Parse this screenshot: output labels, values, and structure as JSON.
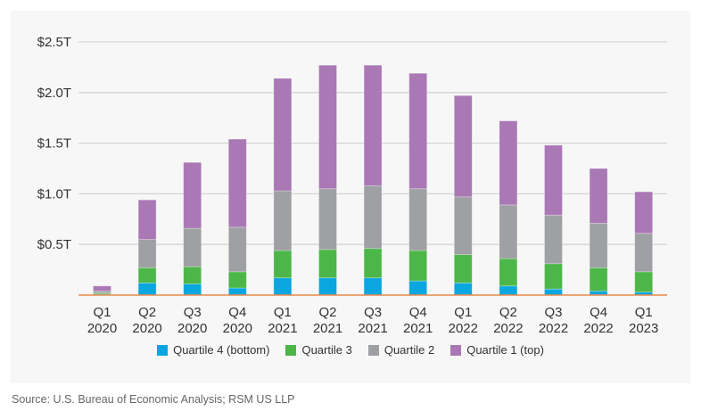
{
  "chart_data": {
    "type": "bar",
    "stacked": true,
    "title": "",
    "xlabel": "",
    "ylabel": "",
    "ylim": [
      0,
      2.5
    ],
    "yticks": [
      {
        "value": 0.5,
        "label": "$0.5T"
      },
      {
        "value": 1.0,
        "label": "$1.0T"
      },
      {
        "value": 1.5,
        "label": "$1.5T"
      },
      {
        "value": 2.0,
        "label": "$2.0T"
      },
      {
        "value": 2.5,
        "label": "$2.5T"
      }
    ],
    "grid": true,
    "legend_position": "bottom",
    "categories": [
      [
        "Q1",
        "2020"
      ],
      [
        "Q2",
        "2020"
      ],
      [
        "Q3",
        "2020"
      ],
      [
        "Q4",
        "2020"
      ],
      [
        "Q1",
        "2021"
      ],
      [
        "Q2",
        "2021"
      ],
      [
        "Q3",
        "2021"
      ],
      [
        "Q4",
        "2021"
      ],
      [
        "Q1",
        "2022"
      ],
      [
        "Q2",
        "2022"
      ],
      [
        "Q3",
        "2022"
      ],
      [
        "Q4",
        "2022"
      ],
      [
        "Q1",
        "2023"
      ]
    ],
    "series": [
      {
        "name": "Quartile 4 (bottom)",
        "color": "#0aa6e0",
        "values": [
          0.01,
          0.12,
          0.11,
          0.07,
          0.17,
          0.17,
          0.17,
          0.14,
          0.12,
          0.09,
          0.06,
          0.04,
          0.03
        ]
      },
      {
        "name": "Quartile 3",
        "color": "#4cb748",
        "values": [
          0.01,
          0.15,
          0.17,
          0.16,
          0.27,
          0.28,
          0.29,
          0.3,
          0.28,
          0.27,
          0.25,
          0.23,
          0.2
        ]
      },
      {
        "name": "Quartile 2",
        "color": "#9fa0a3",
        "values": [
          0.02,
          0.28,
          0.38,
          0.44,
          0.59,
          0.6,
          0.62,
          0.61,
          0.57,
          0.53,
          0.48,
          0.44,
          0.38
        ]
      },
      {
        "name": "Quartile 1 (top)",
        "color": "#aa78b5",
        "values": [
          0.05,
          0.39,
          0.65,
          0.87,
          1.11,
          1.22,
          1.19,
          1.14,
          1.0,
          0.83,
          0.69,
          0.54,
          0.41
        ]
      }
    ]
  },
  "source": "Source: U.S. Bureau of Economic Analysis; RSM US LLP"
}
